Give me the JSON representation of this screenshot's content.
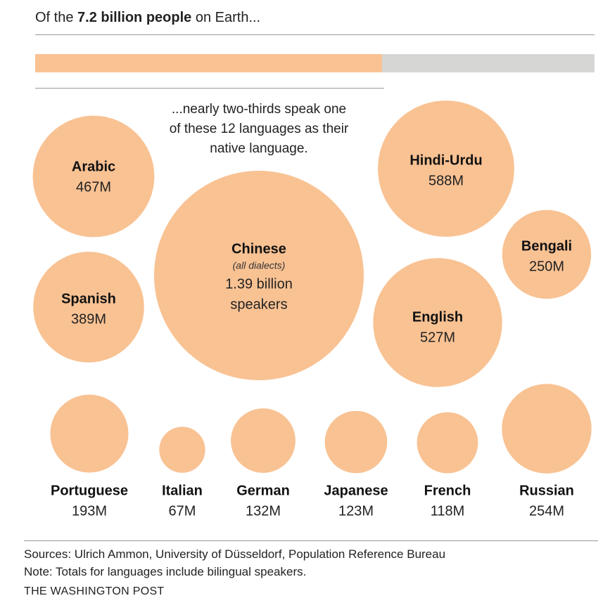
{
  "headline": {
    "prefix": "Of the ",
    "bold": "7.2 billion people",
    "suffix": " on Earth..."
  },
  "bar": {
    "fraction": 0.62,
    "fill_color": "#f9c293",
    "track_color": "#d6d6d4"
  },
  "chart_data": {
    "type": "bubble",
    "unit": "native speakers",
    "intro": [
      "...nearly two-thirds speak one",
      "of these 12 languages as their",
      "native language."
    ],
    "bubble_color": "#f9c293",
    "bubbles": [
      {
        "id": "chinese",
        "name": "Chinese",
        "sub": "(all dialects)",
        "value": 1390,
        "label": [
          "1.39 billion",
          "speakers"
        ]
      },
      {
        "id": "arabic",
        "name": "Arabic",
        "value": 467,
        "label": [
          "467M"
        ]
      },
      {
        "id": "spanish",
        "name": "Spanish",
        "value": 389,
        "label": [
          "389M"
        ]
      },
      {
        "id": "hindi-urdu",
        "name": "Hindi-Urdu",
        "value": 588,
        "label": [
          "588M"
        ]
      },
      {
        "id": "bengali",
        "name": "Bengali",
        "value": 250,
        "label": [
          "250M"
        ]
      },
      {
        "id": "english",
        "name": "English",
        "value": 527,
        "label": [
          "527M"
        ]
      },
      {
        "id": "portuguese",
        "name": "Portuguese",
        "value": 193,
        "label": [
          "193M"
        ]
      },
      {
        "id": "italian",
        "name": "Italian",
        "value": 67,
        "label": [
          "67M"
        ]
      },
      {
        "id": "german",
        "name": "German",
        "value": 132,
        "label": [
          "132M"
        ]
      },
      {
        "id": "japanese",
        "name": "Japanese",
        "value": 123,
        "label": [
          "123M"
        ]
      },
      {
        "id": "french",
        "name": "French",
        "value": 118,
        "label": [
          "118M"
        ]
      },
      {
        "id": "russian",
        "name": "Russian",
        "value": 254,
        "label": [
          "254M"
        ]
      }
    ]
  },
  "footer": {
    "sources": "Sources: Ulrich Ammon, University of Düsseldorf, Population Reference Bureau",
    "note": "Note: Totals for languages include bilingual speakers.",
    "brand": "THE WASHINGTON POST"
  }
}
